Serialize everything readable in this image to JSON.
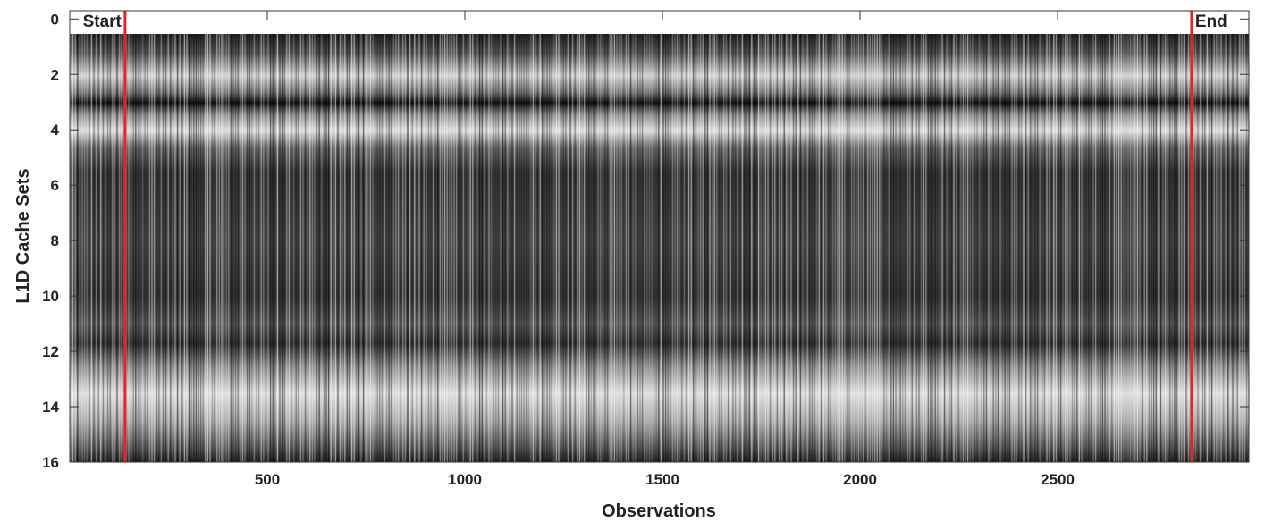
{
  "chart_data": {
    "type": "heatmap",
    "xlabel": "Observations",
    "ylabel": "L1D Cache Sets",
    "xlim": [
      0,
      2984
    ],
    "ylim": [
      16,
      -0.3
    ],
    "xticks": [
      500,
      1000,
      1500,
      2000,
      2500
    ],
    "yticks": [
      0,
      2,
      4,
      6,
      8,
      10,
      12,
      14,
      16
    ],
    "markers": [
      {
        "label": "Start",
        "x": 140,
        "color": "#e0262b"
      },
      {
        "label": "End",
        "x": 2839,
        "color": "#e0262b"
      }
    ]
  }
}
